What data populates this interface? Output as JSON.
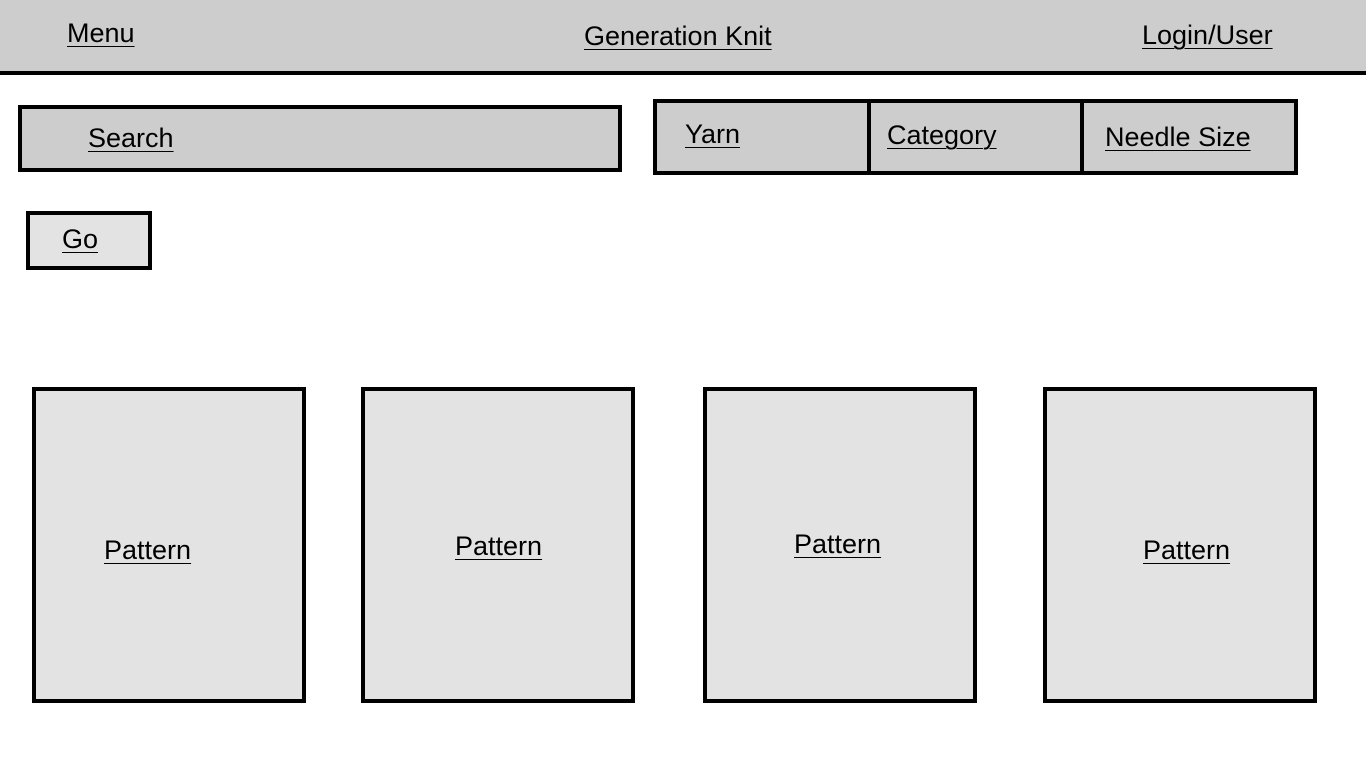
{
  "header": {
    "menu_label": "Menu",
    "site_title": "Generation Knit",
    "login_label": "Login/User"
  },
  "search": {
    "placeholder": "Search",
    "go_label": "Go"
  },
  "filters": [
    {
      "label": "Yarn"
    },
    {
      "label": "Category"
    },
    {
      "label": "Needle Size"
    }
  ],
  "patterns": [
    {
      "label": "Pattern"
    },
    {
      "label": "Pattern"
    },
    {
      "label": "Pattern"
    },
    {
      "label": "Pattern"
    }
  ],
  "colors": {
    "header_bg": "#cdcdcd",
    "card_bg": "#e3e3e3",
    "border": "#000000"
  }
}
